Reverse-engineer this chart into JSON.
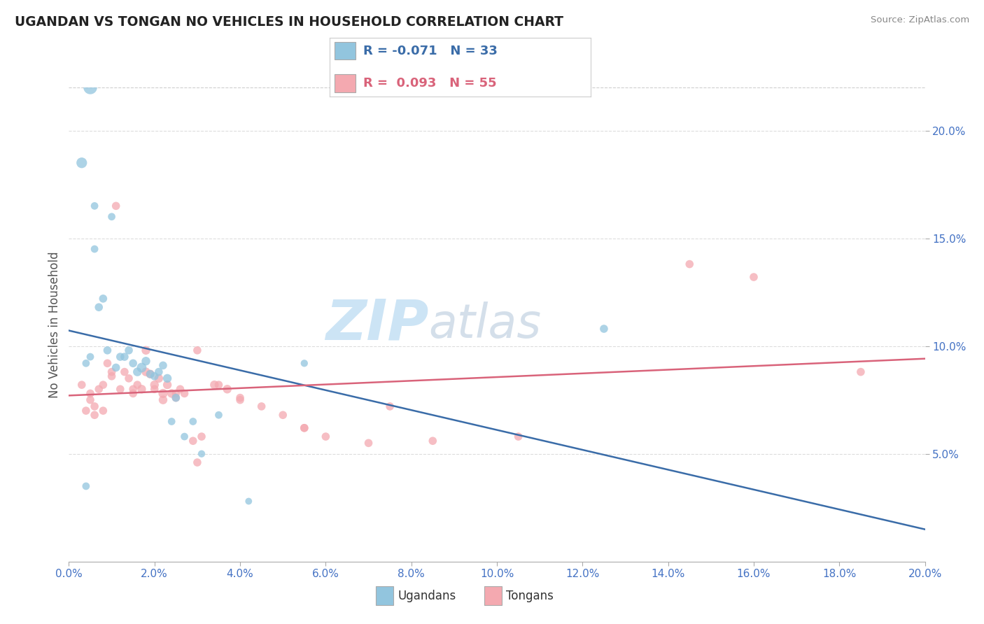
{
  "title": "UGANDAN VS TONGAN NO VEHICLES IN HOUSEHOLD CORRELATION CHART",
  "source": "Source: ZipAtlas.com",
  "ylabel": "No Vehicles in Household",
  "legend_blue_r": "-0.071",
  "legend_blue_n": "33",
  "legend_pink_r": "0.093",
  "legend_pink_n": "55",
  "legend_label_blue": "Ugandans",
  "legend_label_pink": "Tongans",
  "blue_color": "#92c5de",
  "pink_color": "#f4a9b0",
  "trendline_blue_color": "#3a6ca8",
  "trendline_pink_color": "#d9637a",
  "xmin": 0.0,
  "xmax": 20.0,
  "ymin": 0.0,
  "ymax": 22.0,
  "blue_scatter_x": [
    0.3,
    0.4,
    0.5,
    0.6,
    0.7,
    0.8,
    0.9,
    1.0,
    1.1,
    1.2,
    1.3,
    1.4,
    1.5,
    1.6,
    1.7,
    1.8,
    1.9,
    2.0,
    2.1,
    2.2,
    2.3,
    2.4,
    2.5,
    2.7,
    2.9,
    3.1,
    3.5,
    4.2,
    5.5,
    12.5,
    0.5,
    0.4,
    0.6
  ],
  "blue_scatter_y": [
    18.5,
    9.2,
    9.5,
    16.5,
    11.8,
    12.2,
    9.8,
    16.0,
    9.0,
    9.5,
    9.5,
    9.8,
    9.2,
    8.8,
    9.0,
    9.3,
    8.7,
    8.6,
    8.8,
    9.1,
    8.5,
    6.5,
    7.6,
    5.8,
    6.5,
    5.0,
    6.8,
    2.8,
    9.2,
    10.8,
    22.0,
    3.5,
    14.5
  ],
  "blue_scatter_sizes": [
    120,
    60,
    60,
    60,
    70,
    70,
    70,
    60,
    70,
    70,
    70,
    70,
    70,
    80,
    100,
    80,
    70,
    70,
    70,
    70,
    80,
    60,
    70,
    60,
    60,
    55,
    60,
    50,
    55,
    70,
    200,
    60,
    60
  ],
  "pink_scatter_x": [
    0.3,
    0.4,
    0.5,
    0.6,
    0.7,
    0.8,
    0.9,
    1.0,
    1.1,
    1.2,
    1.3,
    1.4,
    1.5,
    1.6,
    1.7,
    1.8,
    1.9,
    2.0,
    2.1,
    2.2,
    2.3,
    2.4,
    2.5,
    2.7,
    2.9,
    3.1,
    3.4,
    3.7,
    4.0,
    4.5,
    5.0,
    5.5,
    6.0,
    7.0,
    8.5,
    10.5,
    14.5,
    16.0,
    18.5,
    0.5,
    0.6,
    0.8,
    1.0,
    1.5,
    2.0,
    2.5,
    3.0,
    3.5,
    4.0,
    5.5,
    7.5,
    3.0,
    2.2,
    2.6,
    1.8
  ],
  "pink_scatter_y": [
    8.2,
    7.0,
    7.8,
    6.8,
    8.0,
    8.2,
    9.2,
    8.6,
    16.5,
    8.0,
    8.8,
    8.5,
    8.0,
    8.2,
    8.0,
    9.8,
    8.7,
    8.2,
    8.5,
    7.8,
    8.2,
    7.8,
    7.6,
    7.8,
    5.6,
    5.8,
    8.2,
    8.0,
    7.6,
    7.2,
    6.8,
    6.2,
    5.8,
    5.5,
    5.6,
    5.8,
    13.8,
    13.2,
    8.8,
    7.5,
    7.2,
    7.0,
    8.8,
    7.8,
    8.0,
    7.8,
    9.8,
    8.2,
    7.5,
    6.2,
    7.2,
    4.6,
    7.5,
    8.0,
    8.8
  ],
  "pink_scatter_sizes": [
    70,
    70,
    70,
    70,
    70,
    70,
    70,
    70,
    70,
    70,
    70,
    70,
    70,
    70,
    80,
    80,
    80,
    80,
    80,
    90,
    80,
    80,
    70,
    70,
    70,
    70,
    80,
    80,
    70,
    70,
    70,
    70,
    70,
    70,
    70,
    70,
    70,
    70,
    70,
    70,
    70,
    70,
    70,
    70,
    70,
    70,
    70,
    70,
    70,
    70,
    70,
    70,
    80,
    70,
    80
  ],
  "watermark_zip": "ZIP",
  "watermark_atlas": "atlas",
  "watermark_color": "#cce4f5",
  "grid_color": "#dddddd",
  "tick_color": "#4472c4",
  "ylabel_right_vals": [
    5.0,
    10.0,
    15.0,
    20.0
  ]
}
